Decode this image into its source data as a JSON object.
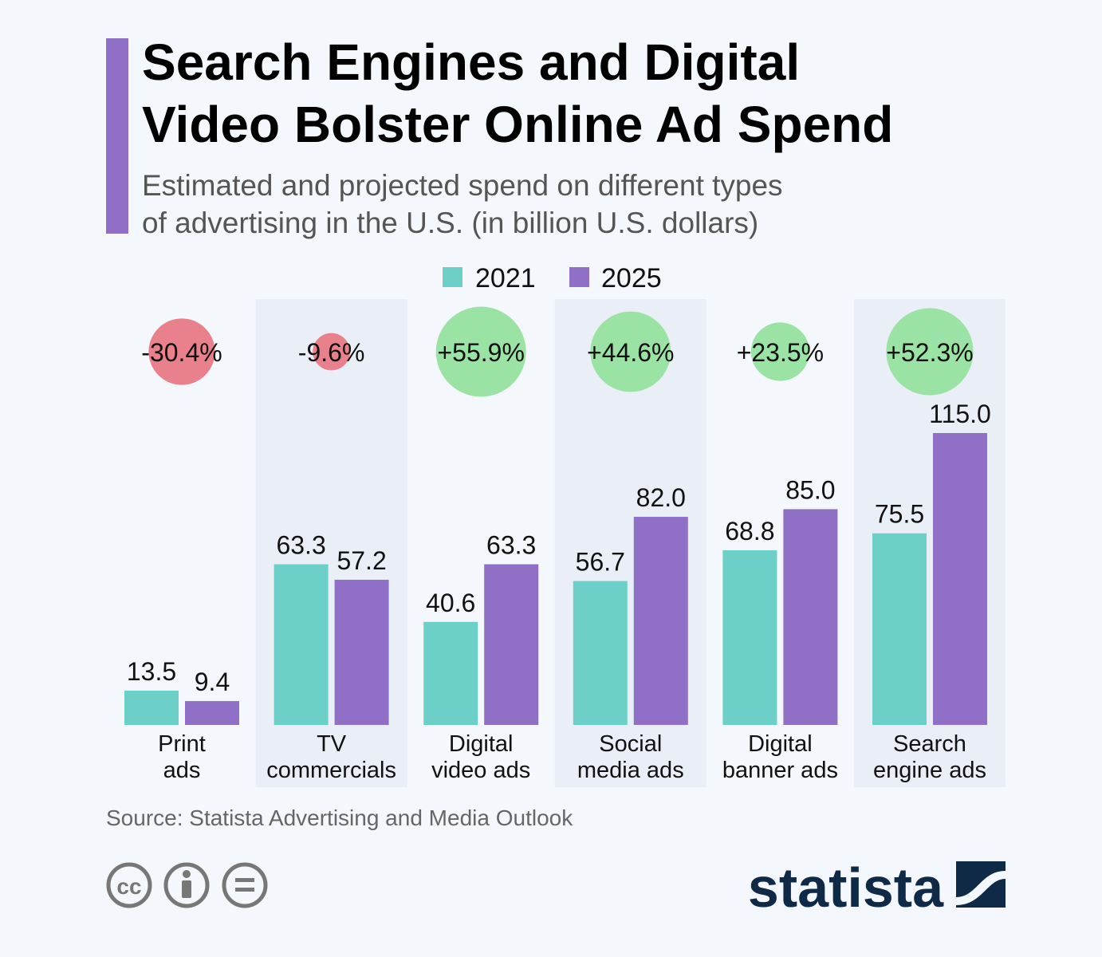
{
  "title_lines": [
    "Search Engines and Digital",
    "Video Bolster Online Ad Spend"
  ],
  "subtitle_lines": [
    "Estimated and projected spend on different types",
    "of advertising in the U.S. (in billion U.S. dollars)"
  ],
  "source": "Source: Statista Advertising and Media Outlook",
  "logo_text": "statista",
  "icons": [
    "cc-icon",
    "attribution-icon",
    "no-derivatives-icon"
  ],
  "colors": {
    "accent": "#8f70c6",
    "s2021": "#6ccfc8",
    "s2025": "#8f70c6",
    "negative": "#e9818c",
    "positive": "#9be3a4",
    "band": "#eaeff7",
    "logo": "#0f2a47"
  },
  "chart_data": {
    "type": "bar",
    "categories": [
      [
        "Print",
        "ads"
      ],
      [
        "TV",
        "commercials"
      ],
      [
        "Digital",
        "video ads"
      ],
      [
        "Social",
        "media ads"
      ],
      [
        "Digital",
        "banner ads"
      ],
      [
        "Search",
        "engine ads"
      ]
    ],
    "series": [
      {
        "name": "2021",
        "values": [
          13.5,
          63.3,
          40.6,
          56.7,
          68.8,
          75.5
        ],
        "labels": [
          "13.5",
          "63.3",
          "40.6",
          "56.7",
          "68.8",
          "75.5"
        ]
      },
      {
        "name": "2025",
        "values": [
          9.4,
          57.2,
          63.3,
          82.0,
          85.0,
          115.0
        ],
        "labels": [
          "9.4",
          "57.2",
          "63.3",
          "82.0",
          "85.0",
          "115.0"
        ]
      }
    ],
    "change_pct": [
      -30.4,
      -9.6,
      55.9,
      44.6,
      23.5,
      52.3
    ],
    "change_labels": [
      "-30.4%",
      "-9.6%",
      "+55.9%",
      "+44.6%",
      "+23.5%",
      "+52.3%"
    ],
    "legend": "top-center",
    "grid": false,
    "ylim": [
      0,
      115
    ]
  }
}
